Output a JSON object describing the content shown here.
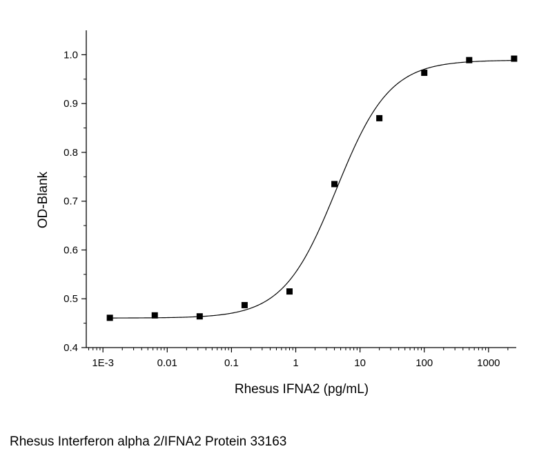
{
  "caption": "Rhesus Interferon alpha 2/IFNA2 Protein 33163",
  "chart_data": {
    "type": "scatter",
    "xlabel": "Rhesus IFNA2 (pg/mL)",
    "ylabel": "OD-Blank",
    "x_scale": "log",
    "xlim": [
      0.00055,
      2700
    ],
    "ylim": [
      0.4,
      1.05
    ],
    "x_ticks": [
      {
        "value": 0.001,
        "label": "1E-3"
      },
      {
        "value": 0.01,
        "label": "0.01"
      },
      {
        "value": 0.1,
        "label": "0.1"
      },
      {
        "value": 1,
        "label": "1"
      },
      {
        "value": 10,
        "label": "10"
      },
      {
        "value": 100,
        "label": "100"
      },
      {
        "value": 1000,
        "label": "1000"
      }
    ],
    "y_ticks": [
      {
        "value": 0.4,
        "label": "0.4"
      },
      {
        "value": 0.5,
        "label": "0.5"
      },
      {
        "value": 0.6,
        "label": "0.6"
      },
      {
        "value": 0.7,
        "label": "0.7"
      },
      {
        "value": 0.8,
        "label": "0.8"
      },
      {
        "value": 0.9,
        "label": "0.9"
      },
      {
        "value": 1.0,
        "label": "1.0"
      }
    ],
    "series": [
      {
        "points": [
          {
            "x": 0.00128,
            "y": 0.461
          },
          {
            "x": 0.0064,
            "y": 0.466
          },
          {
            "x": 0.032,
            "y": 0.464
          },
          {
            "x": 0.16,
            "y": 0.487
          },
          {
            "x": 0.8,
            "y": 0.515
          },
          {
            "x": 4,
            "y": 0.735
          },
          {
            "x": 20,
            "y": 0.87
          },
          {
            "x": 100,
            "y": 0.963
          },
          {
            "x": 500,
            "y": 0.989
          },
          {
            "x": 2500,
            "y": 0.992
          }
        ]
      }
    ],
    "fit": {
      "type": "4PL",
      "bottom": 0.4605,
      "top": 0.989,
      "ec50": 4.3,
      "hill": 1.05
    },
    "colors": {
      "marker": "#000000",
      "curve": "#000000",
      "axis": "#000000"
    },
    "grid": false,
    "legend": "none"
  }
}
